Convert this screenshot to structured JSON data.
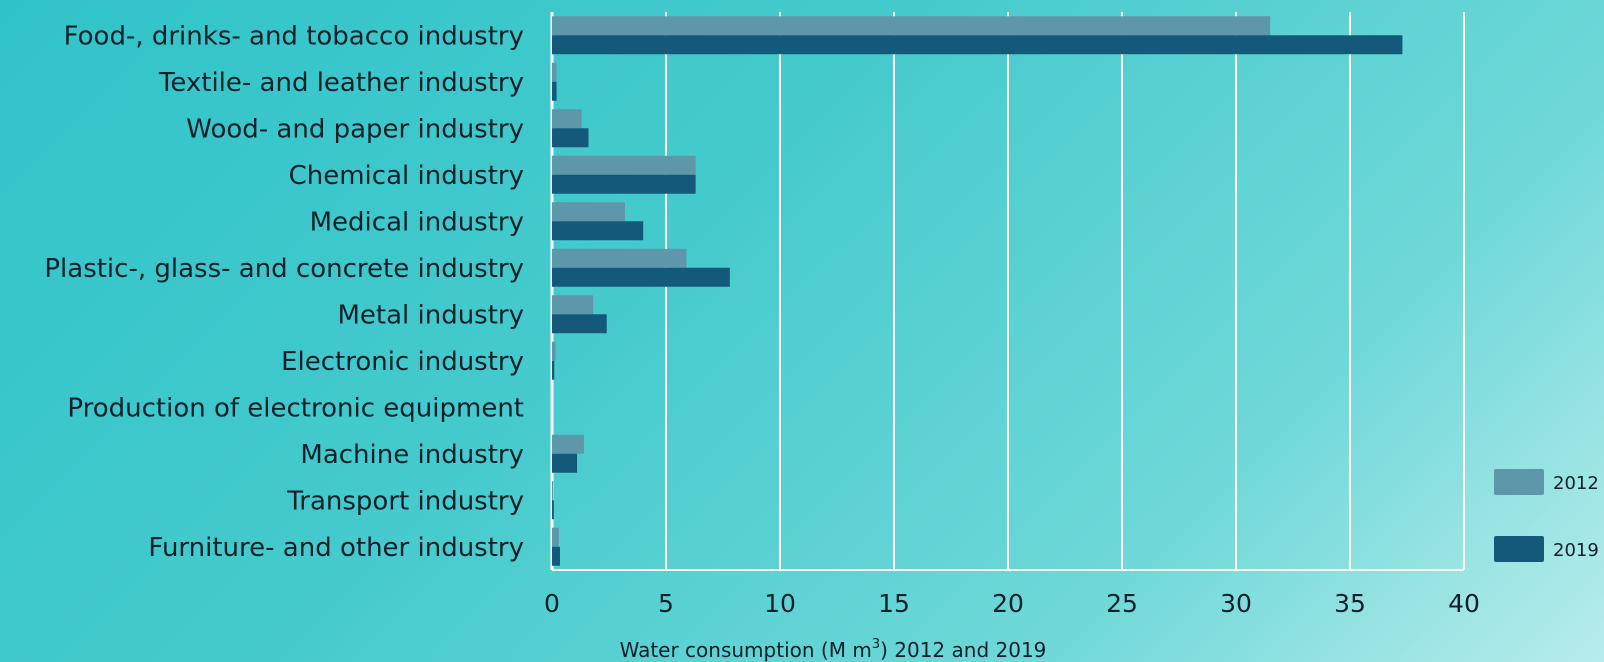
{
  "chart_data": {
    "type": "bar",
    "orientation": "horizontal",
    "categories": [
      "Food-, drinks- and tobacco industry",
      "Textile- and leather industry",
      "Wood- and paper industry",
      "Chemical industry",
      "Medical industry",
      "Plastic-, glass- and concrete industry",
      "Metal industry",
      "Electronic industry",
      "Production of electronic equipment",
      "Machine industry",
      "Transport industry",
      "Furniture- and other industry"
    ],
    "series": [
      {
        "name": "2012",
        "color": "#5e96aa",
        "values": [
          31.5,
          0.2,
          1.3,
          6.3,
          3.2,
          5.9,
          1.8,
          0.15,
          0.0,
          1.4,
          0.05,
          0.3
        ]
      },
      {
        "name": "2019",
        "color": "#14597a",
        "values": [
          37.3,
          0.2,
          1.6,
          6.3,
          4.0,
          7.8,
          2.4,
          0.1,
          0.0,
          1.1,
          0.08,
          0.35
        ]
      }
    ],
    "xlabel_main": "Water consumption (M m",
    "xlabel_sup": "3",
    "xlabel_tail": ") 2012 and 2019",
    "xlim": [
      0,
      40
    ],
    "xticks": [
      0,
      5,
      10,
      15,
      20,
      25,
      30,
      35,
      40
    ],
    "grid": true,
    "legend_position": "right"
  }
}
